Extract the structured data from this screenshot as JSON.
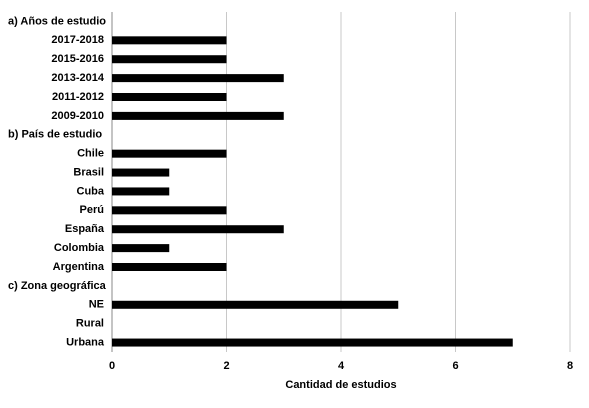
{
  "chart_data": {
    "type": "grouped-hbar",
    "xlabel": "Cantidad de estudios",
    "color": "#000000",
    "grid": true,
    "xlim": [
      0,
      8
    ],
    "xticks": [
      0,
      2,
      4,
      6,
      8
    ],
    "groups": [
      {
        "name": "a) Años de estudio",
        "categories": [
          "2017-2018",
          "2015-2016",
          "2013-2014",
          "2011-2012",
          "2009-2010"
        ],
        "values": [
          2,
          2,
          3,
          2,
          3
        ]
      },
      {
        "name": "b) País de estudio",
        "categories": [
          "Chile",
          "Brasil",
          "Cuba",
          "Perú",
          "España",
          "Colombia",
          "Argentina"
        ],
        "values": [
          2,
          1,
          1,
          2,
          3,
          1,
          2
        ]
      },
      {
        "name": "c) Zona geográfica",
        "categories": [
          "NE",
          "Rural",
          "Urbana"
        ],
        "values": [
          5,
          0,
          7
        ]
      }
    ]
  }
}
